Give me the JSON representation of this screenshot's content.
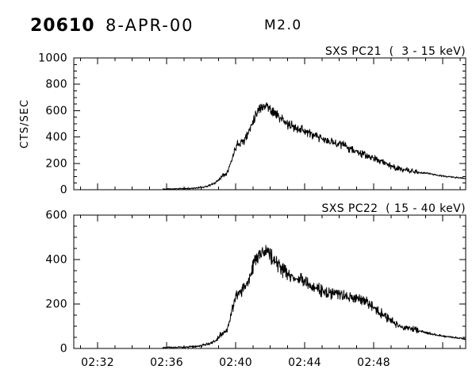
{
  "header": {
    "flare_number": "20610",
    "date": "8-APR-00",
    "goes_class": "M2.0"
  },
  "colors": {
    "foreground": "#000000",
    "background": "#ffffff"
  },
  "chart_data": [
    {
      "type": "line",
      "title": "SXS PC21  (  3 - 15 keV)",
      "ylabel": "CTS/SEC",
      "ylim": [
        0,
        1000
      ],
      "y_major_ticks": [
        0,
        200,
        400,
        600,
        800,
        1000
      ],
      "y_minor_step": 50,
      "xlim_minutes_after_0200": [
        30.62,
        53.33
      ],
      "x_major_ticks_minutes": [
        32,
        36,
        40,
        44,
        48,
        52
      ],
      "x_major_tick_labels": [
        "02:32",
        "02:36",
        "02:40",
        "02:44",
        "02:48",
        ""
      ],
      "x_minor_step_minutes": 1,
      "show_x_tick_labels": false,
      "grid": false,
      "legend": "none",
      "series": [
        {
          "name": "SXS PC21 (3-15 keV)",
          "seed": 11,
          "noise_scale": 2.0,
          "noise_drop_after_minute": 50.6,
          "noise_drop_factor": 0.35,
          "x_minutes_after_0200": [
            35.77,
            36.5,
            37.2,
            37.8,
            38.2,
            38.6,
            38.9,
            39.1,
            39.3,
            39.45,
            39.6,
            39.75,
            39.9,
            40.05,
            40.25,
            40.5,
            40.7,
            40.9,
            41.1,
            41.3,
            41.55,
            41.8,
            42.1,
            42.45,
            42.9,
            43.35,
            43.8,
            44.3,
            44.7,
            45.4,
            46.1,
            47.0,
            47.9,
            48.4,
            49.3,
            50.0,
            50.6,
            51.2,
            51.9,
            52.6,
            53.33
          ],
          "counts_per_sec": [
            5,
            7,
            9,
            14,
            22,
            38,
            60,
            90,
            115,
            125,
            160,
            215,
            280,
            345,
            360,
            375,
            420,
            490,
            555,
            605,
            635,
            640,
            600,
            560,
            505,
            475,
            462,
            425,
            400,
            365,
            348,
            290,
            240,
            220,
            162,
            145,
            130,
            124,
            105,
            95,
            85
          ]
        }
      ]
    },
    {
      "type": "line",
      "title": "SXS PC22  ( 15 - 40 keV)",
      "ylabel": "",
      "ylim": [
        0,
        600
      ],
      "y_major_ticks": [
        0,
        200,
        400,
        600
      ],
      "y_minor_step": 50,
      "xlim_minutes_after_0200": [
        30.62,
        53.33
      ],
      "x_major_ticks_minutes": [
        32,
        36,
        40,
        44,
        48,
        52
      ],
      "x_major_tick_labels": [
        "02:32",
        "02:36",
        "02:40",
        "02:44",
        "02:48",
        ""
      ],
      "x_minor_step_minutes": 1,
      "show_x_tick_labels": true,
      "grid": false,
      "legend": "none",
      "series": [
        {
          "name": "SXS PC22 (15-40 keV)",
          "seed": 23,
          "noise_scale": 2.0,
          "noise_drop_after_minute": 50.6,
          "noise_drop_factor": 0.35,
          "x_minutes_after_0200": [
            35.77,
            36.5,
            37.2,
            37.8,
            38.2,
            38.6,
            38.9,
            39.1,
            39.3,
            39.45,
            39.6,
            39.75,
            39.9,
            40.05,
            40.25,
            40.5,
            40.7,
            40.9,
            41.1,
            41.3,
            41.55,
            41.8,
            42.1,
            42.45,
            42.9,
            43.35,
            43.8,
            44.3,
            44.7,
            45.4,
            46.1,
            47.0,
            47.9,
            48.4,
            49.3,
            50.0,
            50.6,
            51.2,
            51.9,
            52.6,
            53.33
          ],
          "counts_per_sec": [
            4,
            5,
            7,
            10,
            16,
            26,
            40,
            58,
            70,
            76,
            110,
            155,
            200,
            240,
            258,
            272,
            300,
            345,
            395,
            420,
            435,
            440,
            410,
            375,
            340,
            320,
            305,
            285,
            270,
            248,
            240,
            225,
            195,
            160,
            110,
            92,
            80,
            68,
            58,
            50,
            43
          ]
        }
      ]
    }
  ]
}
